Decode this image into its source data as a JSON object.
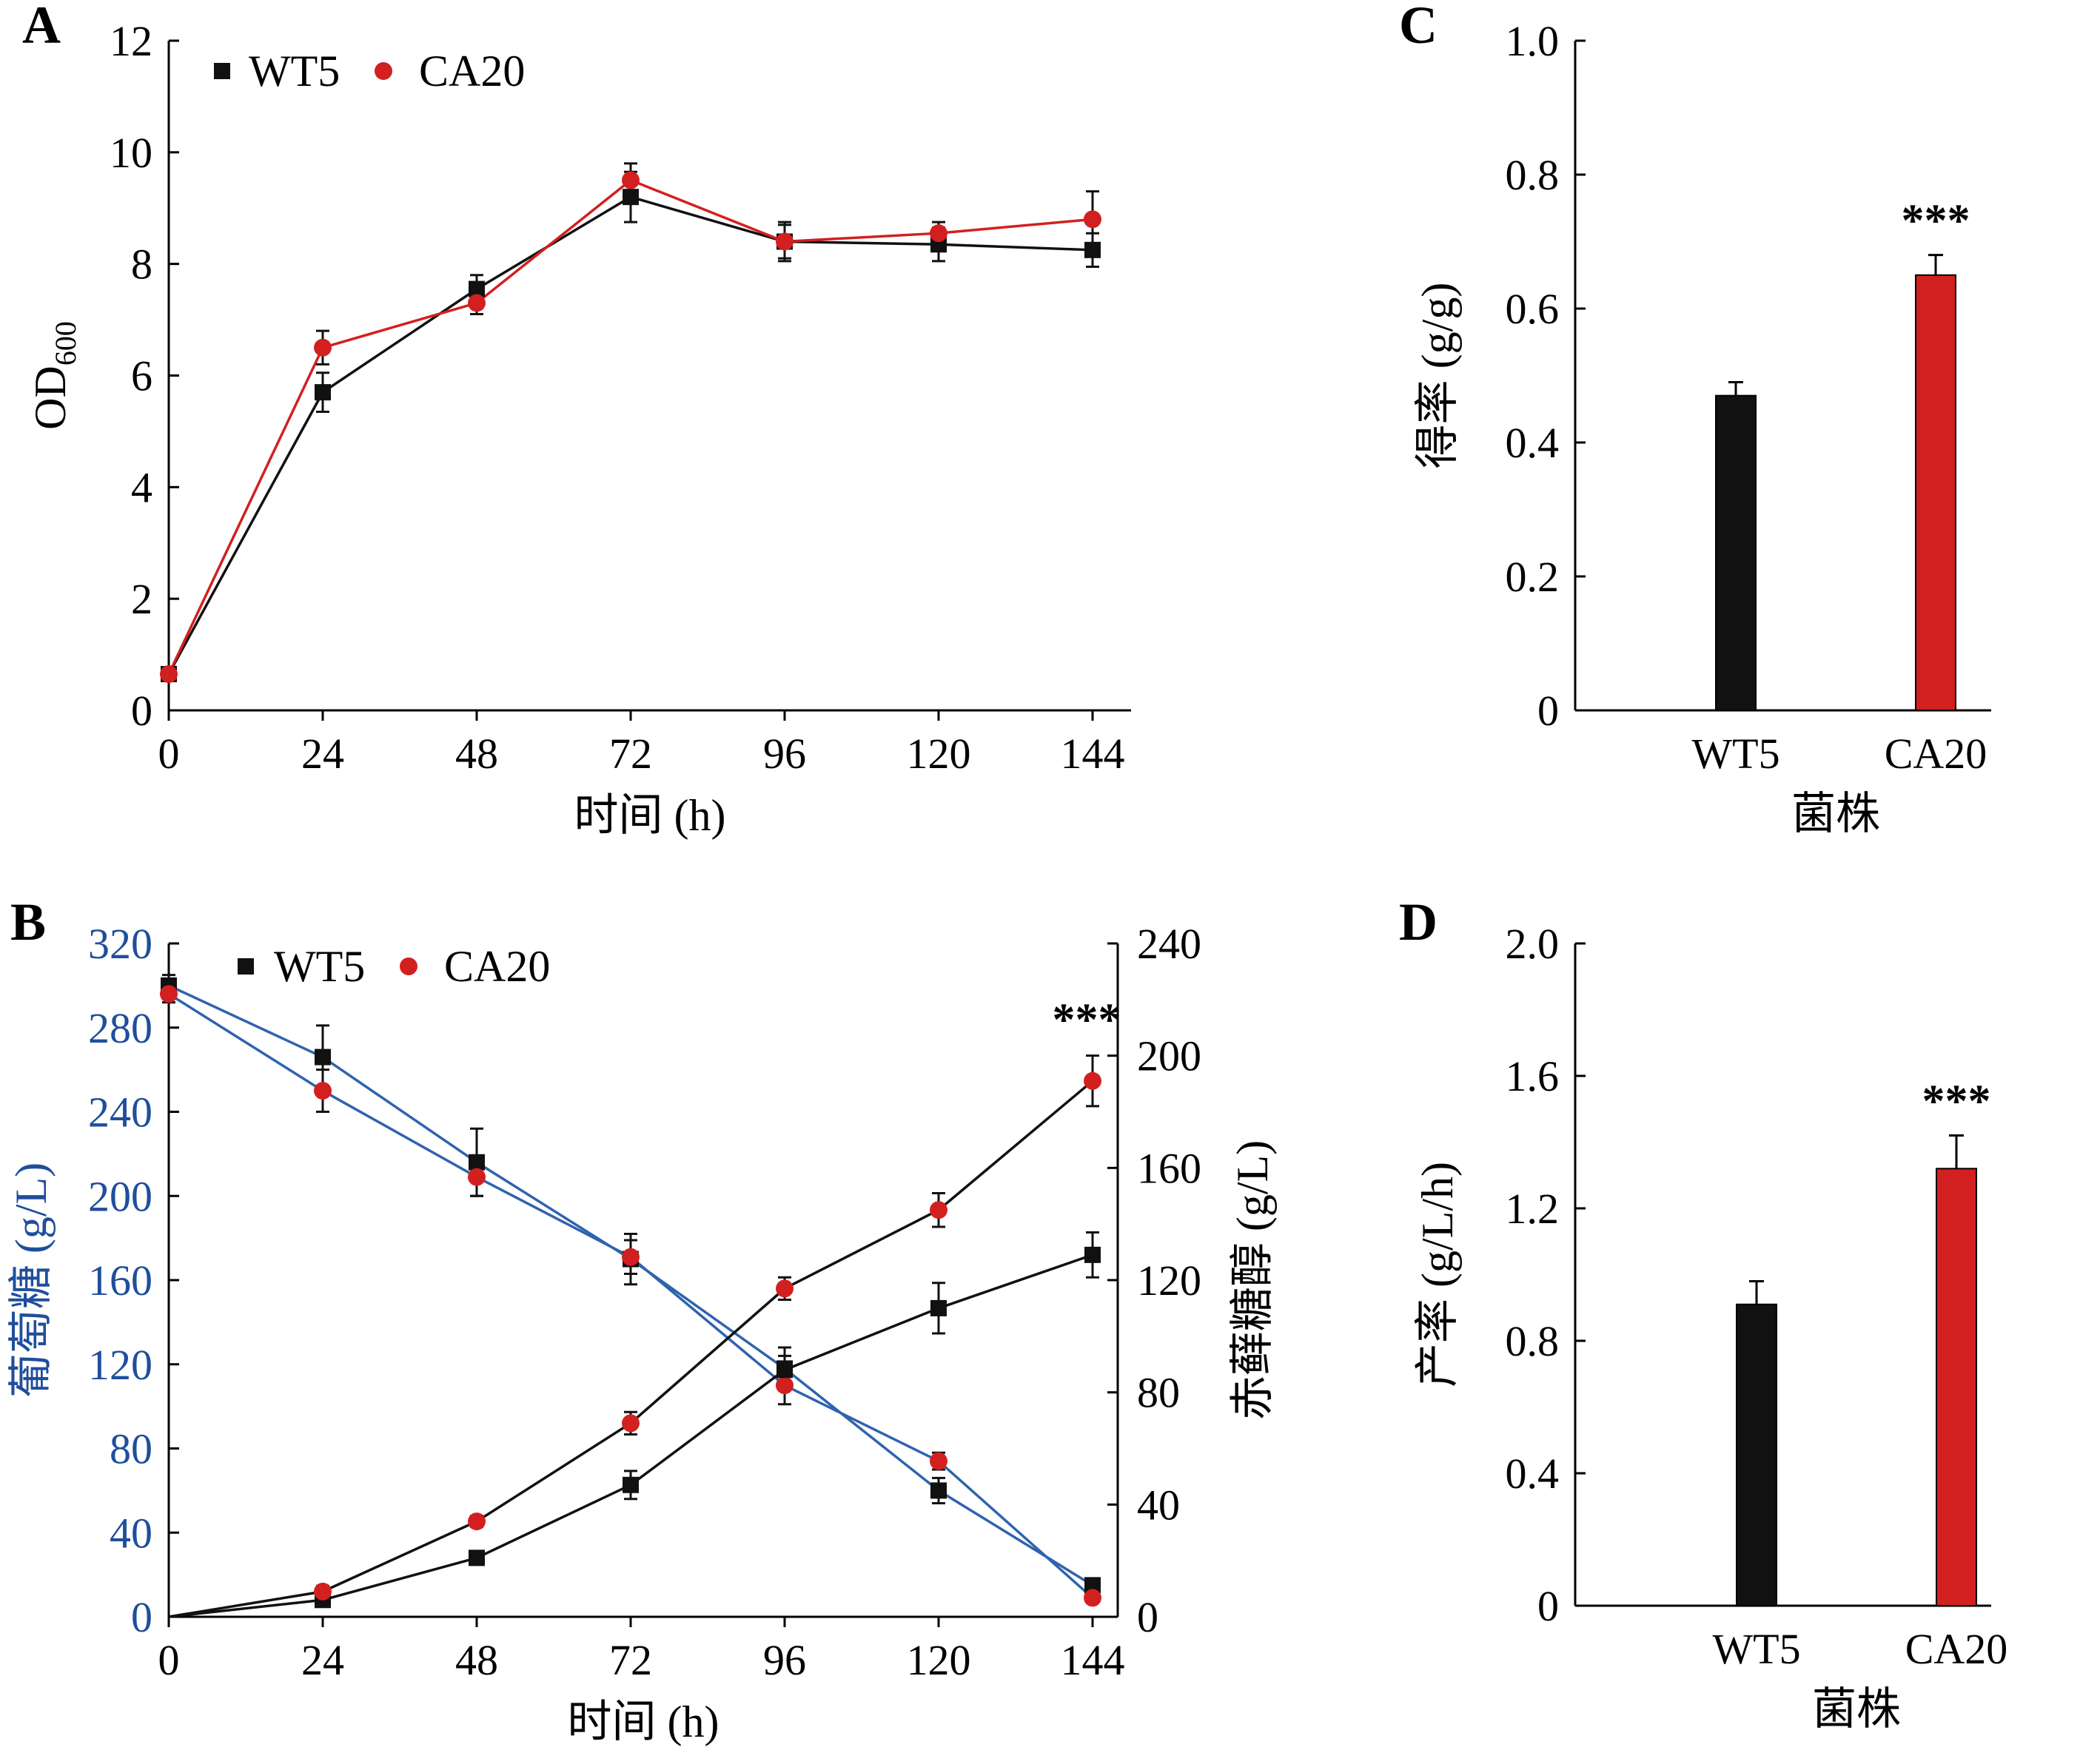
{
  "colors": {
    "wt5": "#111111",
    "ca20": "#d22020",
    "glucose_axis": "#1f4e9c",
    "glucose_line": "#2f63ae"
  },
  "legend": {
    "wt5": "WT5",
    "ca20": "CA20"
  },
  "panel_labels": {
    "a": "A",
    "b": "B",
    "c": "C",
    "d": "D"
  },
  "chart_data": [
    {
      "panel": "A",
      "type": "line",
      "xlabel": "时间 (h)",
      "ylabel_main": "OD",
      "ylabel_sub": "600",
      "x": [
        0,
        24,
        48,
        72,
        96,
        120,
        144
      ],
      "xlim": [
        0,
        150
      ],
      "ylim": [
        0,
        12
      ],
      "xticks": [
        "0",
        "24",
        "48",
        "72",
        "96",
        "120",
        "144"
      ],
      "yticks": [
        "0",
        "2",
        "4",
        "6",
        "8",
        "10",
        "12"
      ],
      "legend_position": "top-left",
      "series": [
        {
          "name": "WT5",
          "marker": "square",
          "values": [
            0.65,
            5.7,
            7.55,
            9.2,
            8.4,
            8.35,
            8.25
          ],
          "errors": [
            0.05,
            0.35,
            0.25,
            0.45,
            0.35,
            0.3,
            0.3
          ]
        },
        {
          "name": "CA20",
          "marker": "circle",
          "values": [
            0.65,
            6.5,
            7.3,
            9.5,
            8.4,
            8.55,
            8.8
          ],
          "errors": [
            0.05,
            0.3,
            0.2,
            0.3,
            0.3,
            0.2,
            0.5
          ]
        }
      ]
    },
    {
      "panel": "B",
      "type": "line",
      "xlabel": "时间 (h)",
      "ylabel_left": "葡萄糖 (g/L)",
      "ylabel_right": "赤藓糖醇 (g/L)",
      "x": [
        0,
        24,
        48,
        72,
        96,
        120,
        144
      ],
      "xlim": [
        0,
        150
      ],
      "ylim_left": [
        0,
        320
      ],
      "ylim_right": [
        0,
        240
      ],
      "xticks": [
        "0",
        "24",
        "48",
        "72",
        "96",
        "120",
        "144"
      ],
      "yticks_left": [
        "0",
        "40",
        "80",
        "120",
        "160",
        "200",
        "240",
        "280",
        "320"
      ],
      "yticks_right": [
        "0",
        "40",
        "80",
        "120",
        "160",
        "200",
        "240"
      ],
      "legend_position": "top-left",
      "annotation": "***",
      "glucose_series": [
        {
          "name": "WT5",
          "marker": "square",
          "values": [
            300,
            266,
            216,
            170,
            118,
            60,
            15
          ],
          "errors": [
            5,
            15,
            16,
            12,
            10,
            6,
            3
          ]
        },
        {
          "name": "CA20",
          "marker": "circle",
          "values": [
            296,
            250,
            209,
            171,
            110,
            74,
            9
          ],
          "errors": [
            4,
            10,
            9,
            8,
            9,
            4,
            2
          ]
        }
      ],
      "erythritol_series": [
        {
          "name": "WT5",
          "marker": "square",
          "values": [
            0,
            6,
            21,
            47,
            88,
            110,
            129
          ],
          "errors": [
            0,
            2,
            2,
            5,
            5,
            9,
            8
          ]
        },
        {
          "name": "CA20",
          "marker": "circle",
          "values": [
            0,
            9,
            34,
            69,
            117,
            145,
            191
          ],
          "errors": [
            0,
            2,
            2,
            4,
            4,
            6,
            9
          ]
        }
      ]
    },
    {
      "panel": "C",
      "type": "bar",
      "xlabel": "菌株",
      "ylabel": "得率 (g/g)",
      "categories": [
        "WT5",
        "CA20"
      ],
      "values": [
        0.47,
        0.65
      ],
      "errors": [
        0.02,
        0.03
      ],
      "ylim": [
        0,
        1.0
      ],
      "yticks": [
        "0",
        "0.2",
        "0.4",
        "0.6",
        "0.8",
        "1.0"
      ],
      "annotations": [
        "",
        "***"
      ]
    },
    {
      "panel": "D",
      "type": "bar",
      "xlabel": "菌株",
      "ylabel": "产率 (g/L/h)",
      "categories": [
        "WT5",
        "CA20"
      ],
      "values": [
        0.91,
        1.32
      ],
      "errors": [
        0.07,
        0.1
      ],
      "ylim": [
        0,
        2.0
      ],
      "yticks": [
        "0",
        "0.4",
        "0.8",
        "1.2",
        "1.6",
        "2.0"
      ],
      "annotations": [
        "",
        "***"
      ]
    }
  ]
}
